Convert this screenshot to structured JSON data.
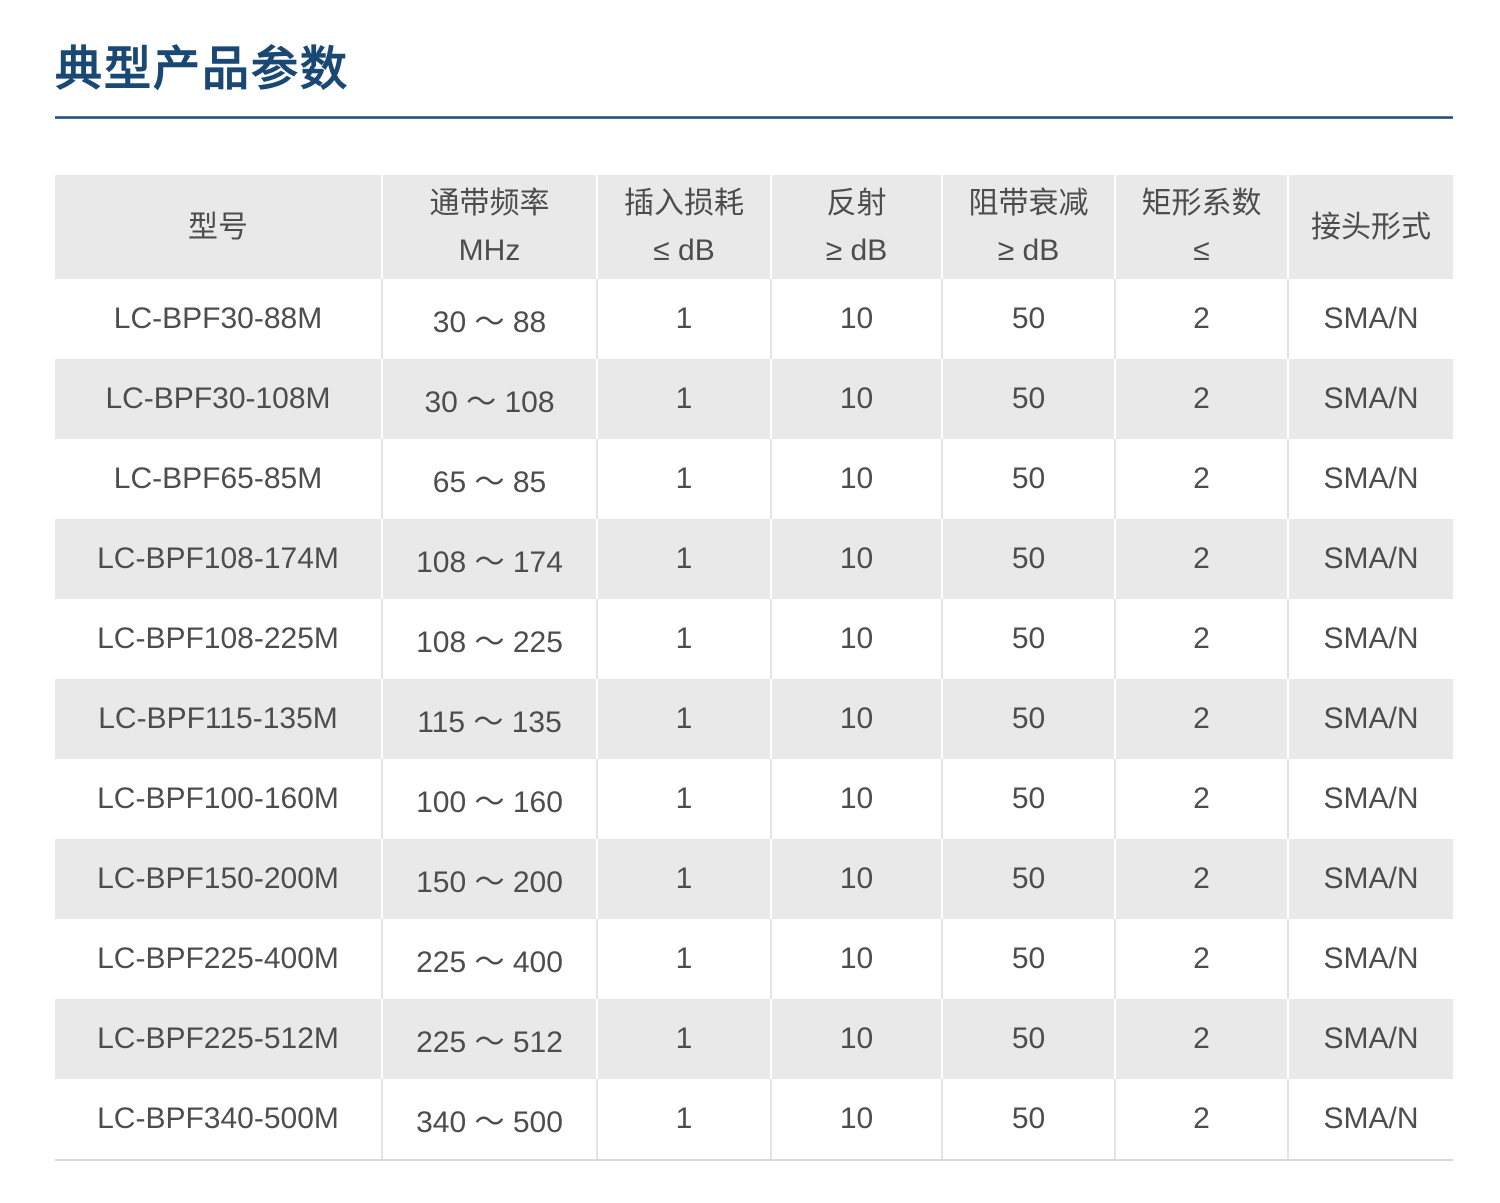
{
  "page": {
    "title": "典型产品参数"
  },
  "theme": {
    "title_color": "#1a4874",
    "rule_color": "#2a5784",
    "header_bg": "#e9e9e9",
    "stripe_bg": "#e9e9e9",
    "text_color": "#4d4d4d",
    "table_bottom_border": "#d9d9d9"
  },
  "table": {
    "columns": [
      {
        "key": "model",
        "label": "型号",
        "sublabel": ""
      },
      {
        "key": "passband_mhz",
        "label": "通带频率",
        "sublabel": "MHz"
      },
      {
        "key": "insertion_loss_db",
        "label": "插入损耗",
        "sublabel": "≤ dB"
      },
      {
        "key": "reflection_db",
        "label": "反射",
        "sublabel": "≥ dB"
      },
      {
        "key": "stopband_atten_db",
        "label": "阻带衰减",
        "sublabel": "≥ dB"
      },
      {
        "key": "shape_factor",
        "label": "矩形系数",
        "sublabel": "≤"
      },
      {
        "key": "connector",
        "label": "接头形式",
        "sublabel": ""
      }
    ],
    "rows": [
      {
        "model": "LC-BPF30-88M",
        "passband_mhz": "30 ～ 88",
        "insertion_loss_db": "1",
        "reflection_db": "10",
        "stopband_atten_db": "50",
        "shape_factor": "2",
        "connector": "SMA/N"
      },
      {
        "model": "LC-BPF30-108M",
        "passband_mhz": "30 ～ 108",
        "insertion_loss_db": "1",
        "reflection_db": "10",
        "stopband_atten_db": "50",
        "shape_factor": "2",
        "connector": "SMA/N"
      },
      {
        "model": "LC-BPF65-85M",
        "passband_mhz": "65 ～ 85",
        "insertion_loss_db": "1",
        "reflection_db": "10",
        "stopband_atten_db": "50",
        "shape_factor": "2",
        "connector": "SMA/N"
      },
      {
        "model": "LC-BPF108-174M",
        "passband_mhz": "108 ～ 174",
        "insertion_loss_db": "1",
        "reflection_db": "10",
        "stopband_atten_db": "50",
        "shape_factor": "2",
        "connector": "SMA/N"
      },
      {
        "model": "LC-BPF108-225M",
        "passband_mhz": "108 ～ 225",
        "insertion_loss_db": "1",
        "reflection_db": "10",
        "stopband_atten_db": "50",
        "shape_factor": "2",
        "connector": "SMA/N"
      },
      {
        "model": "LC-BPF115-135M",
        "passband_mhz": "115 ～ 135",
        "insertion_loss_db": "1",
        "reflection_db": "10",
        "stopband_atten_db": "50",
        "shape_factor": "2",
        "connector": "SMA/N"
      },
      {
        "model": "LC-BPF100-160M",
        "passband_mhz": "100 ～ 160",
        "insertion_loss_db": "1",
        "reflection_db": "10",
        "stopband_atten_db": "50",
        "shape_factor": "2",
        "connector": "SMA/N"
      },
      {
        "model": "LC-BPF150-200M",
        "passband_mhz": "150 ～ 200",
        "insertion_loss_db": "1",
        "reflection_db": "10",
        "stopband_atten_db": "50",
        "shape_factor": "2",
        "connector": "SMA/N"
      },
      {
        "model": "LC-BPF225-400M",
        "passband_mhz": "225 ～ 400",
        "insertion_loss_db": "1",
        "reflection_db": "10",
        "stopband_atten_db": "50",
        "shape_factor": "2",
        "connector": "SMA/N"
      },
      {
        "model": "LC-BPF225-512M",
        "passband_mhz": "225 ～ 512",
        "insertion_loss_db": "1",
        "reflection_db": "10",
        "stopband_atten_db": "50",
        "shape_factor": "2",
        "connector": "SMA/N"
      },
      {
        "model": "LC-BPF340-500M",
        "passband_mhz": "340 ～ 500",
        "insertion_loss_db": "1",
        "reflection_db": "10",
        "stopband_atten_db": "50",
        "shape_factor": "2",
        "connector": "SMA/N"
      }
    ]
  }
}
